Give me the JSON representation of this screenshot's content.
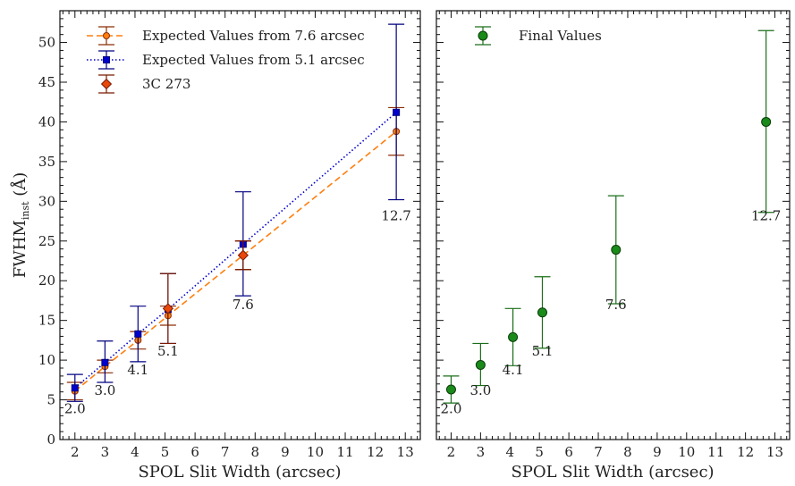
{
  "chart_data": [
    {
      "type": "scatter",
      "xlabel": "SPOL Slit Width (arcsec)",
      "ylabel_main": "FWHM",
      "ylabel_sub": "inst",
      "ylabel_unit": " (Å)",
      "xlim": [
        1.5,
        13.5
      ],
      "ylim": [
        0,
        54
      ],
      "xticks": [
        2,
        3,
        4,
        5,
        6,
        7,
        8,
        9,
        10,
        11,
        12,
        13
      ],
      "yticks": [
        0,
        5,
        10,
        15,
        20,
        25,
        30,
        35,
        40,
        45,
        50
      ],
      "legend_position": "top-left",
      "series": [
        {
          "name": "Expected Values from 7.6 arcsec",
          "marker": "circle",
          "line": "dashed",
          "color": "#ff7f0e",
          "edge_color": "#8c2d04",
          "err_color": "#8c2d04",
          "points": [
            {
              "x": 2.0,
              "y": 6.1,
              "lo": 5.0,
              "hi": 7.2
            },
            {
              "x": 3.0,
              "y": 9.2,
              "lo": 8.4,
              "hi": 10.0
            },
            {
              "x": 4.1,
              "y": 12.5,
              "lo": 11.4,
              "hi": 13.6
            },
            {
              "x": 5.1,
              "y": 15.6,
              "lo": 14.4,
              "hi": 16.8
            },
            {
              "x": 7.6,
              "y": 23.2,
              "lo": 21.4,
              "hi": 25.0
            },
            {
              "x": 12.7,
              "y": 38.8,
              "lo": 35.8,
              "hi": 41.8
            }
          ]
        },
        {
          "name": "Expected Values from 5.1 arcsec",
          "marker": "square",
          "line": "dotted",
          "color": "#0000cc",
          "edge_color": "#000080",
          "err_color": "#000080",
          "points": [
            {
              "x": 2.0,
              "y": 6.5,
              "lo": 4.8,
              "hi": 8.2
            },
            {
              "x": 3.0,
              "y": 9.7,
              "lo": 7.2,
              "hi": 12.4
            },
            {
              "x": 4.1,
              "y": 13.3,
              "lo": 9.8,
              "hi": 16.8
            },
            {
              "x": 5.1,
              "y": 16.4,
              "lo": 12.1,
              "hi": 20.9
            },
            {
              "x": 7.6,
              "y": 24.6,
              "lo": 18.1,
              "hi": 31.2
            },
            {
              "x": 12.7,
              "y": 41.2,
              "lo": 30.2,
              "hi": 52.3
            }
          ]
        },
        {
          "name": "3C 273",
          "marker": "diamond",
          "line": "none",
          "color": "#e8480a",
          "edge_color": "#7a1a00",
          "err_color": "#7a1a00",
          "points": [
            {
              "x": 5.1,
              "y": 16.5,
              "lo": 12.1,
              "hi": 20.9
            },
            {
              "x": 7.6,
              "y": 23.2,
              "lo": 21.4,
              "hi": 25.0
            }
          ]
        }
      ],
      "annotations": [
        {
          "text": "2.0",
          "x": 2.0,
          "y": 3.3
        },
        {
          "text": "3.0",
          "x": 3.0,
          "y": 5.6
        },
        {
          "text": "4.1",
          "x": 4.1,
          "y": 8.2
        },
        {
          "text": "5.1",
          "x": 5.1,
          "y": 10.6
        },
        {
          "text": "7.6",
          "x": 7.6,
          "y": 16.4
        },
        {
          "text": "12.7",
          "x": 12.7,
          "y": 27.6
        }
      ]
    },
    {
      "type": "scatter",
      "xlabel": "SPOL Slit Width (arcsec)",
      "xlim": [
        1.5,
        13.5
      ],
      "ylim": [
        0,
        54
      ],
      "xticks": [
        2,
        3,
        4,
        5,
        6,
        7,
        8,
        9,
        10,
        11,
        12,
        13
      ],
      "legend_position": "top-left",
      "series": [
        {
          "name": "Final Values",
          "marker": "circle",
          "line": "none",
          "color": "#1a8a1a",
          "edge_color": "#0a3d0a",
          "err_color": "#1a6e1a",
          "points": [
            {
              "x": 2.0,
              "y": 6.3,
              "lo": 4.6,
              "hi": 8.0
            },
            {
              "x": 3.0,
              "y": 9.4,
              "lo": 6.8,
              "hi": 12.1
            },
            {
              "x": 4.1,
              "y": 12.9,
              "lo": 9.3,
              "hi": 16.5
            },
            {
              "x": 5.1,
              "y": 16.0,
              "lo": 11.5,
              "hi": 20.5
            },
            {
              "x": 7.6,
              "y": 23.9,
              "lo": 17.1,
              "hi": 30.7
            },
            {
              "x": 12.7,
              "y": 40.0,
              "lo": 28.6,
              "hi": 51.5
            }
          ]
        }
      ],
      "annotations": [
        {
          "text": "2.0",
          "x": 2.0,
          "y": 3.3
        },
        {
          "text": "3.0",
          "x": 3.0,
          "y": 5.6
        },
        {
          "text": "4.1",
          "x": 4.1,
          "y": 8.2
        },
        {
          "text": "5.1",
          "x": 5.1,
          "y": 10.6
        },
        {
          "text": "7.6",
          "x": 7.6,
          "y": 16.4
        },
        {
          "text": "12.7",
          "x": 12.7,
          "y": 27.6
        }
      ]
    }
  ]
}
